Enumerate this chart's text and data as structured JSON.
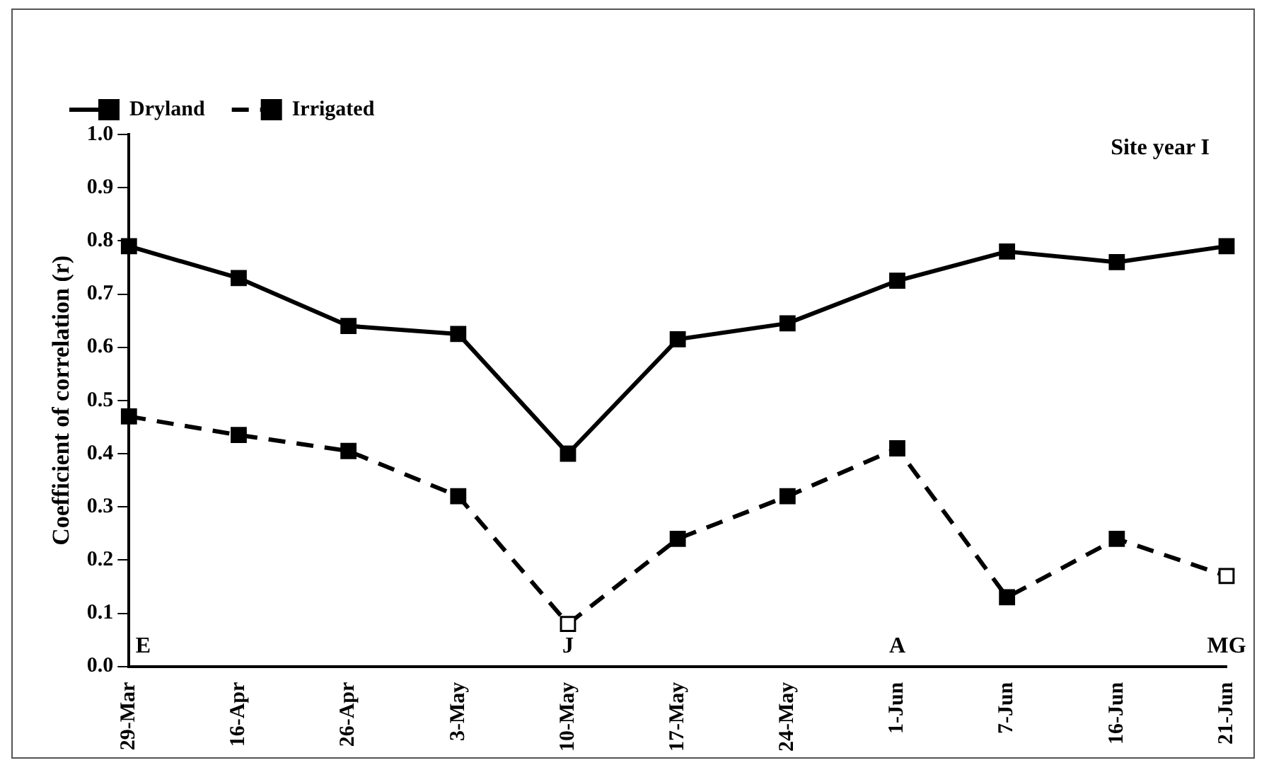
{
  "chart_data": {
    "type": "line",
    "title": "Site year I",
    "ylabel": "Coefficient of correlation (r)",
    "categories": [
      "29-Mar",
      "16-Apr",
      "26-Apr",
      "3-May",
      "10-May",
      "17-May",
      "24-May",
      "1-Jun",
      "7-Jun",
      "16-Jun",
      "21-Jun"
    ],
    "series": [
      {
        "name": "Dryland",
        "color": "#000000",
        "line_style": "solid",
        "values": [
          0.79,
          0.73,
          0.64,
          0.625,
          0.4,
          0.615,
          0.645,
          0.725,
          0.78,
          0.76,
          0.79
        ]
      },
      {
        "name": "Irrigated",
        "color": "#000000",
        "line_style": "dashed",
        "colors": [
          "#000000",
          "#000000",
          "#000000",
          "#000000",
          "#ffffff",
          "#000000",
          "#000000",
          "#000000",
          "#000000",
          "#000000",
          "#ffffff"
        ],
        "values": [
          0.47,
          0.435,
          0.405,
          0.32,
          0.08,
          0.24,
          0.32,
          0.41,
          0.13,
          0.24,
          0.17
        ]
      }
    ],
    "ylim": [
      0,
      1
    ],
    "yticks": [
      {
        "value": 0,
        "label": "0.0"
      },
      {
        "value": 0.1,
        "label": "0.1"
      },
      {
        "value": 0.2,
        "label": "0.2"
      },
      {
        "value": 0.3,
        "label": "0.3"
      },
      {
        "value": 0.4,
        "label": "0.4"
      },
      {
        "value": 0.5,
        "label": "0.5"
      },
      {
        "value": 0.6,
        "label": "0.6"
      },
      {
        "value": 0.7,
        "label": "0.7"
      },
      {
        "value": 0.8,
        "label": "0.8"
      },
      {
        "value": 0.9,
        "label": "0.9"
      },
      {
        "value": 1,
        "label": "1.0"
      }
    ],
    "annotations": [
      "E",
      "J",
      "A",
      "MG"
    ],
    "marker": "square",
    "grid": false,
    "legend": "top left"
  }
}
